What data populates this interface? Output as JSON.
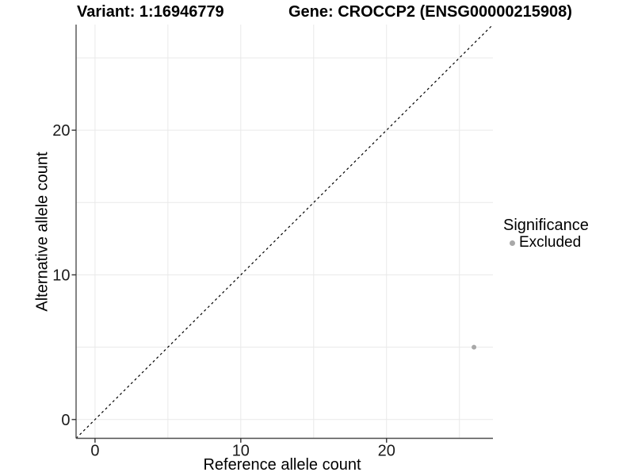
{
  "header": {
    "variant_title": "Variant: 1:16946779",
    "gene_title": "Gene: CROCCP2 (ENSG00000215908)"
  },
  "legend": {
    "title": "Significance",
    "entries": [
      {
        "label": "Excluded",
        "color": "#a8a8a8"
      }
    ]
  },
  "chart_data": {
    "type": "scatter",
    "title": "",
    "xlabel": "Reference allele count",
    "ylabel": "Alternative allele count",
    "xlim": [
      -1.3,
      27.3
    ],
    "ylim": [
      -1.3,
      27.3
    ],
    "x_ticks": [
      0,
      10,
      20
    ],
    "y_ticks": [
      0,
      10,
      20
    ],
    "grid_interval": 5,
    "grid": true,
    "legend_position": "right",
    "identity_line": {
      "style": "dashed",
      "color": "#000000",
      "from": [
        -1.3,
        -1.3
      ],
      "to": [
        27.3,
        27.3
      ]
    },
    "series": [
      {
        "name": "Excluded",
        "color": "#a8a8a8",
        "points": [
          {
            "x": 26,
            "y": 5
          }
        ]
      }
    ],
    "colors": {
      "grid": "#e9e9e9",
      "axis": "#4f4f4f",
      "tick": "#333333",
      "tick_label": "#1a1a1a",
      "background": "#ffffff"
    }
  }
}
